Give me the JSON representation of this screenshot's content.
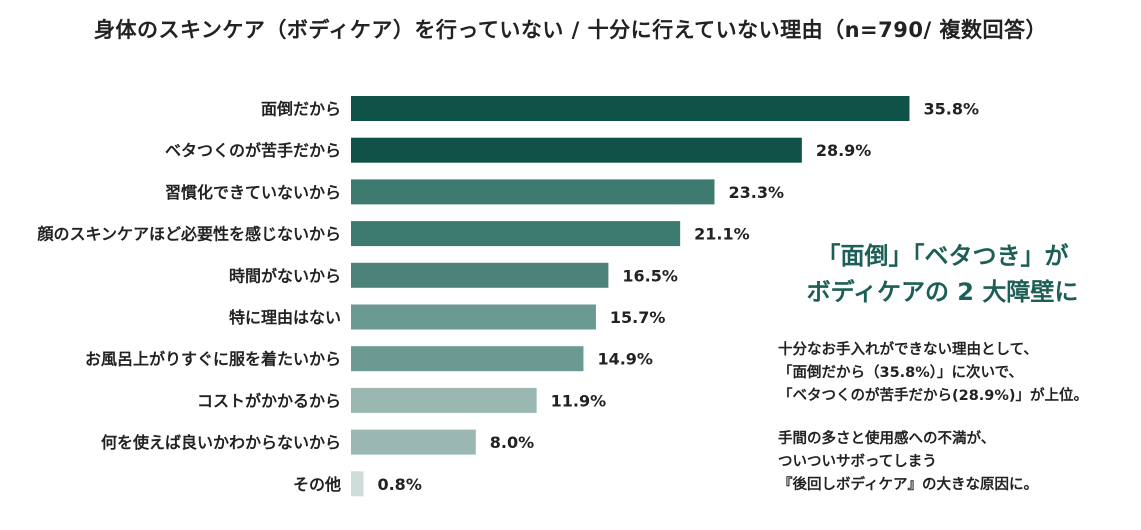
{
  "chart_data": {
    "type": "bar",
    "orientation": "horizontal",
    "title": "身体のスキンケア（ボディケア）を行っていない / 十分に行えていない理由（n=790/ 複数回答）",
    "categories": [
      "面倒だから",
      "ベタつくのが苦手だから",
      "習慣化できていないから",
      "顔のスキンケアほど必要性を感じないから",
      "時間がないから",
      "特に理由はない",
      "お風呂上がりすぐに服を着たいから",
      "コストがかかるから",
      "何を使えば良いかわからないから",
      "その他"
    ],
    "values": [
      35.8,
      28.9,
      23.3,
      21.1,
      16.5,
      15.7,
      14.9,
      11.9,
      8.0,
      0.8
    ],
    "value_labels": [
      "35.8%",
      "28.9%",
      "23.3%",
      "21.1%",
      "16.5%",
      "15.7%",
      "14.9%",
      "11.9%",
      "8.0%",
      "0.8%"
    ],
    "colors": [
      "#0f5248",
      "#0f5248",
      "#3d7a70",
      "#3d7a70",
      "#4c8279",
      "#6a9a92",
      "#6a9a92",
      "#9ab7b2",
      "#9ab7b2",
      "#cfdcda"
    ],
    "unit": "%",
    "grid": false
  },
  "annotation": {
    "headline_lines": [
      "「面倒」「ベタつき」が",
      "ボディケアの 2 大障壁に"
    ],
    "desc_lines_1": [
      "十分なお手入れができない理由として、",
      "「面倒だから（35.8%）」に次いで、",
      "「ベタつくのが苦手だから(28.9%)」が上位。"
    ],
    "desc_lines_2": [
      "手間の多さと使用感への不満が、",
      "ついついサボってしまう",
      "『後回しボディケア』の大きな原因に。"
    ],
    "headline_color": "#1d5f56"
  }
}
